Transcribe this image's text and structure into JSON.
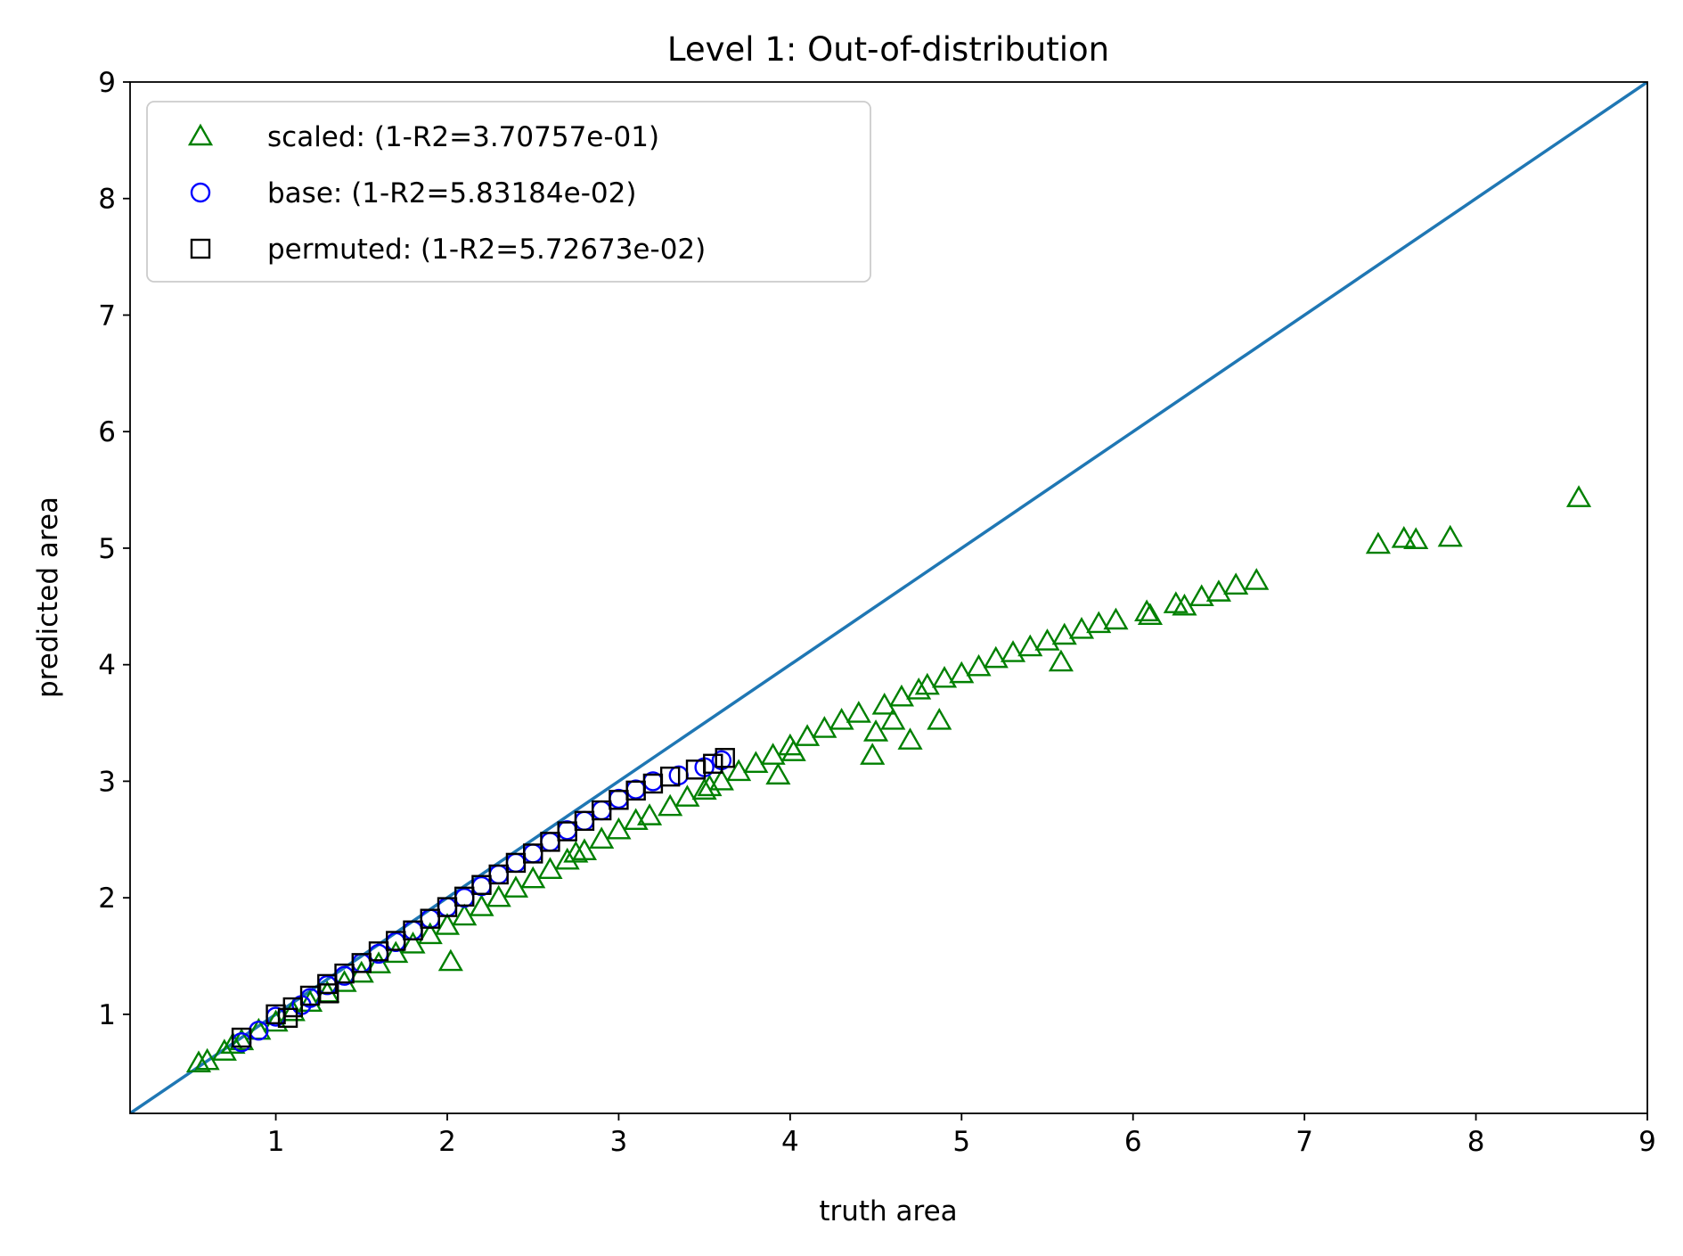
{
  "chart_data": {
    "type": "scatter",
    "title": "Level 1: Out-of-distribution",
    "xlabel": "truth area",
    "ylabel": "predicted area",
    "xlim": [
      0.15,
      9.0
    ],
    "ylim": [
      0.15,
      9.0
    ],
    "xticks": [
      "1",
      "2",
      "3",
      "4",
      "5",
      "6",
      "7",
      "8",
      "9"
    ],
    "yticks": [
      "1",
      "2",
      "3",
      "4",
      "5",
      "6",
      "7",
      "8",
      "9"
    ],
    "grid": false,
    "legend_position": "top-left",
    "reference_line": {
      "x": [
        0.15,
        9.0
      ],
      "y": [
        0.15,
        9.0
      ],
      "color": "#1f77b4"
    },
    "series": [
      {
        "name": "scaled: (1-R2=3.70757e-01)",
        "marker": "triangle",
        "color": "#008000",
        "points": [
          [
            0.55,
            0.58
          ],
          [
            0.6,
            0.6
          ],
          [
            0.7,
            0.68
          ],
          [
            0.75,
            0.74
          ],
          [
            0.8,
            0.77
          ],
          [
            0.9,
            0.86
          ],
          [
            1.0,
            0.93
          ],
          [
            1.1,
            1.02
          ],
          [
            1.2,
            1.1
          ],
          [
            1.3,
            1.18
          ],
          [
            1.4,
            1.27
          ],
          [
            1.5,
            1.35
          ],
          [
            1.6,
            1.43
          ],
          [
            1.7,
            1.52
          ],
          [
            1.8,
            1.6
          ],
          [
            1.9,
            1.68
          ],
          [
            2.0,
            1.76
          ],
          [
            2.02,
            1.45
          ],
          [
            2.1,
            1.84
          ],
          [
            2.2,
            1.92
          ],
          [
            2.3,
            2.0
          ],
          [
            2.4,
            2.08
          ],
          [
            2.5,
            2.16
          ],
          [
            2.6,
            2.24
          ],
          [
            2.7,
            2.32
          ],
          [
            2.75,
            2.38
          ],
          [
            2.8,
            2.4
          ],
          [
            2.9,
            2.5
          ],
          [
            3.0,
            2.58
          ],
          [
            3.1,
            2.66
          ],
          [
            3.18,
            2.7
          ],
          [
            3.3,
            2.78
          ],
          [
            3.4,
            2.86
          ],
          [
            3.5,
            2.92
          ],
          [
            3.53,
            2.95
          ],
          [
            3.6,
            3.0
          ],
          [
            3.7,
            3.08
          ],
          [
            3.8,
            3.15
          ],
          [
            3.9,
            3.22
          ],
          [
            3.93,
            3.05
          ],
          [
            4.0,
            3.3
          ],
          [
            4.02,
            3.25
          ],
          [
            4.1,
            3.38
          ],
          [
            4.2,
            3.45
          ],
          [
            4.3,
            3.52
          ],
          [
            4.4,
            3.58
          ],
          [
            4.48,
            3.22
          ],
          [
            4.5,
            3.42
          ],
          [
            4.55,
            3.65
          ],
          [
            4.6,
            3.52
          ],
          [
            4.65,
            3.72
          ],
          [
            4.7,
            3.35
          ],
          [
            4.75,
            3.78
          ],
          [
            4.8,
            3.82
          ],
          [
            4.87,
            3.52
          ],
          [
            4.9,
            3.88
          ],
          [
            5.0,
            3.92
          ],
          [
            5.1,
            3.98
          ],
          [
            5.2,
            4.05
          ],
          [
            5.3,
            4.1
          ],
          [
            5.4,
            4.15
          ],
          [
            5.5,
            4.2
          ],
          [
            5.58,
            4.02
          ],
          [
            5.6,
            4.25
          ],
          [
            5.7,
            4.3
          ],
          [
            5.8,
            4.35
          ],
          [
            5.9,
            4.38
          ],
          [
            6.08,
            4.45
          ],
          [
            6.1,
            4.42
          ],
          [
            6.25,
            4.52
          ],
          [
            6.3,
            4.5
          ],
          [
            6.4,
            4.58
          ],
          [
            6.5,
            4.62
          ],
          [
            6.6,
            4.68
          ],
          [
            6.72,
            4.72
          ],
          [
            7.43,
            5.03
          ],
          [
            7.58,
            5.08
          ],
          [
            7.65,
            5.07
          ],
          [
            7.85,
            5.09
          ],
          [
            8.6,
            5.43
          ]
        ]
      },
      {
        "name": "base: (1-R2=5.83184e-02)",
        "marker": "circle",
        "color": "#0000ff",
        "points": [
          [
            0.8,
            0.76
          ],
          [
            0.9,
            0.86
          ],
          [
            1.0,
            0.98
          ],
          [
            1.15,
            1.08
          ],
          [
            1.2,
            1.14
          ],
          [
            1.3,
            1.25
          ],
          [
            1.4,
            1.33
          ],
          [
            1.5,
            1.44
          ],
          [
            1.6,
            1.52
          ],
          [
            1.7,
            1.62
          ],
          [
            1.8,
            1.72
          ],
          [
            1.9,
            1.82
          ],
          [
            2.0,
            1.92
          ],
          [
            2.1,
            2.0
          ],
          [
            2.2,
            2.1
          ],
          [
            2.3,
            2.2
          ],
          [
            2.4,
            2.3
          ],
          [
            2.5,
            2.38
          ],
          [
            2.6,
            2.48
          ],
          [
            2.7,
            2.58
          ],
          [
            2.8,
            2.66
          ],
          [
            2.9,
            2.75
          ],
          [
            3.0,
            2.85
          ],
          [
            3.1,
            2.93
          ],
          [
            3.2,
            3.0
          ],
          [
            3.35,
            3.05
          ],
          [
            3.5,
            3.12
          ],
          [
            3.6,
            3.18
          ]
        ]
      },
      {
        "name": "permuted: (1-R2=5.72673e-02)",
        "marker": "square",
        "color": "#000000",
        "points": [
          [
            0.8,
            0.8
          ],
          [
            1.0,
            1.0
          ],
          [
            1.07,
            0.97
          ],
          [
            1.1,
            1.06
          ],
          [
            1.2,
            1.16
          ],
          [
            1.3,
            1.26
          ],
          [
            1.31,
            1.18
          ],
          [
            1.4,
            1.35
          ],
          [
            1.5,
            1.44
          ],
          [
            1.6,
            1.54
          ],
          [
            1.7,
            1.63
          ],
          [
            1.8,
            1.72
          ],
          [
            1.9,
            1.82
          ],
          [
            2.0,
            1.92
          ],
          [
            2.1,
            2.01
          ],
          [
            2.2,
            2.11
          ],
          [
            2.3,
            2.2
          ],
          [
            2.4,
            2.3
          ],
          [
            2.5,
            2.38
          ],
          [
            2.6,
            2.48
          ],
          [
            2.7,
            2.57
          ],
          [
            2.8,
            2.66
          ],
          [
            2.9,
            2.75
          ],
          [
            3.0,
            2.84
          ],
          [
            3.1,
            2.92
          ],
          [
            3.2,
            2.98
          ],
          [
            3.3,
            3.04
          ],
          [
            3.45,
            3.1
          ],
          [
            3.55,
            3.15
          ],
          [
            3.62,
            3.2
          ]
        ]
      }
    ]
  }
}
